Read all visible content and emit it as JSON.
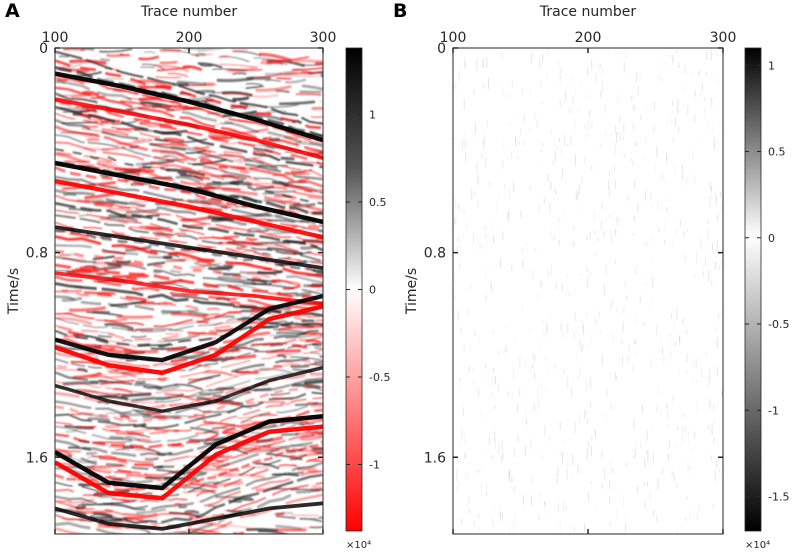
{
  "chart_data": [
    {
      "panel_label": "A",
      "type": "heatmap",
      "title": "",
      "xlabel": "Trace number",
      "ylabel": "Time/s",
      "x_axis_position": "top",
      "xlim": [
        100,
        300
      ],
      "ylim": [
        0,
        1.9
      ],
      "x_ticks": [
        "100",
        "200",
        "300"
      ],
      "x_tick_values": [
        100,
        200,
        300
      ],
      "y_ticks": [
        "0",
        "0.8",
        "1.6"
      ],
      "y_tick_values": [
        0,
        0.8,
        1.6
      ],
      "colormap": "red-white-black",
      "colorbar": {
        "ticks": [
          "1",
          "0.5",
          "0",
          "-0.5",
          "-1"
        ],
        "tick_values": [
          1,
          0.5,
          0,
          -0.5,
          -1
        ],
        "range": [
          -1.38,
          1.38
        ],
        "exponent_label": "×10⁴",
        "low_color": "#ff0000",
        "mid_color": "#ffffff",
        "high_color": "#000000"
      },
      "reflectors": [
        {
          "x": [
            100,
            150,
            200,
            250,
            300
          ],
          "y": [
            0.1,
            0.15,
            0.21,
            0.28,
            0.36
          ],
          "amplitude": 1.0
        },
        {
          "x": [
            100,
            150,
            200,
            250,
            300
          ],
          "y": [
            0.2,
            0.25,
            0.3,
            0.36,
            0.43
          ],
          "amplitude": -0.8
        },
        {
          "x": [
            100,
            150,
            200,
            250,
            300
          ],
          "y": [
            0.45,
            0.5,
            0.55,
            0.62,
            0.68
          ],
          "amplitude": 1.0
        },
        {
          "x": [
            100,
            150,
            200,
            250,
            300
          ],
          "y": [
            0.52,
            0.57,
            0.62,
            0.68,
            0.74
          ],
          "amplitude": -0.9
        },
        {
          "x": [
            100,
            150,
            200,
            250,
            300
          ],
          "y": [
            0.7,
            0.74,
            0.78,
            0.82,
            0.86
          ],
          "amplitude": 0.7
        },
        {
          "x": [
            100,
            150,
            200,
            250,
            300
          ],
          "y": [
            0.88,
            0.91,
            0.95,
            0.97,
            1.0
          ],
          "amplitude": -0.7
        },
        {
          "x": [
            100,
            140,
            180,
            220,
            260,
            300
          ],
          "y": [
            1.14,
            1.2,
            1.22,
            1.15,
            1.02,
            0.97
          ],
          "amplitude": 0.9
        },
        {
          "x": [
            100,
            140,
            180,
            220,
            260,
            300
          ],
          "y": [
            1.17,
            1.24,
            1.27,
            1.2,
            1.06,
            1.01
          ],
          "amplitude": -1.0
        },
        {
          "x": [
            100,
            140,
            180,
            220,
            260,
            300
          ],
          "y": [
            1.32,
            1.38,
            1.42,
            1.38,
            1.3,
            1.25
          ],
          "amplitude": 0.6
        },
        {
          "x": [
            100,
            140,
            180,
            220,
            260,
            300
          ],
          "y": [
            1.58,
            1.7,
            1.72,
            1.55,
            1.46,
            1.44
          ],
          "amplitude": 1.0
        },
        {
          "x": [
            100,
            140,
            180,
            220,
            260,
            300
          ],
          "y": [
            1.62,
            1.74,
            1.76,
            1.59,
            1.5,
            1.48
          ],
          "amplitude": -1.0
        },
        {
          "x": [
            100,
            140,
            180,
            220,
            260,
            300
          ],
          "y": [
            1.8,
            1.86,
            1.88,
            1.84,
            1.8,
            1.78
          ],
          "amplitude": 0.7
        }
      ]
    },
    {
      "panel_label": "B",
      "type": "heatmap",
      "title": "",
      "xlabel": "Trace number",
      "ylabel": "Time/s",
      "x_axis_position": "top",
      "xlim": [
        100,
        300
      ],
      "ylim": [
        0,
        1.9
      ],
      "x_ticks": [
        "100",
        "200",
        "300"
      ],
      "x_tick_values": [
        100,
        200,
        300
      ],
      "y_ticks": [
        "0",
        "0.8",
        "1.6"
      ],
      "y_tick_values": [
        0,
        0.8,
        1.6
      ],
      "colormap": "white-black",
      "colorbar": {
        "ticks": [
          "1",
          "0.5",
          "0",
          "-0.5",
          "-1",
          "-1.5"
        ],
        "tick_values": [
          1,
          0.5,
          0,
          -0.5,
          -1,
          -1.5
        ],
        "range": [
          -1.7,
          1.1
        ],
        "exponent_label": "×10⁴",
        "low_color": "#000000",
        "high_color": "#000000",
        "mid_color": "#ffffff"
      },
      "description_values": "residual noise near zero amplitude"
    }
  ]
}
